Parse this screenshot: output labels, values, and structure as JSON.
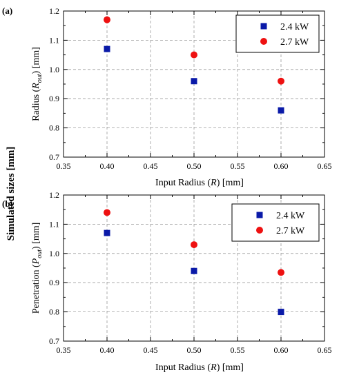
{
  "figure": {
    "super_ylabel": "Simulated sizes [mm]"
  },
  "chart_data": [
    {
      "type": "scatter",
      "panel_label": "(a)",
      "xlabel": {
        "prefix": "Input Radius (",
        "var": "R",
        "sub": "",
        "suffix": ") [mm]"
      },
      "ylabel": {
        "prefix": "Radius (",
        "var": "R",
        "sub": "out",
        "suffix": ") [mm]"
      },
      "xlim": [
        0.35,
        0.65
      ],
      "ylim": [
        0.7,
        1.2
      ],
      "xticks": [
        "0.35",
        "0.40",
        "0.45",
        "0.50",
        "0.55",
        "0.60",
        "0.65"
      ],
      "yticks": [
        "0.7",
        "0.8",
        "0.9",
        "1.0",
        "1.1",
        "1.2"
      ],
      "grid": true,
      "legend_position": "top-right",
      "series": [
        {
          "name": "2.4 kW",
          "marker": "square",
          "color": "#0a1aa8",
          "x": [
            0.4,
            0.5,
            0.6
          ],
          "y": [
            1.07,
            0.96,
            0.86
          ]
        },
        {
          "name": "2.7 kW",
          "marker": "circle",
          "color": "#ee1111",
          "x": [
            0.4,
            0.5,
            0.6
          ],
          "y": [
            1.17,
            1.05,
            0.96
          ]
        }
      ]
    },
    {
      "type": "scatter",
      "panel_label": "(b)",
      "xlabel": {
        "prefix": "Input Radius (",
        "var": "R",
        "sub": "",
        "suffix": ") [mm]"
      },
      "ylabel": {
        "prefix": "Penetration (",
        "var": "P",
        "sub": "out",
        "suffix": ") [mm]"
      },
      "xlim": [
        0.35,
        0.65
      ],
      "ylim": [
        0.7,
        1.2
      ],
      "xticks": [
        "0.35",
        "0.40",
        "0.45",
        "0.50",
        "0.55",
        "0.60",
        "0.65"
      ],
      "yticks": [
        "0.7",
        "0.8",
        "0.9",
        "1.0",
        "1.1",
        "1.2"
      ],
      "grid": true,
      "legend_position": "top-right",
      "series": [
        {
          "name": "2.4 kW",
          "marker": "square",
          "color": "#0a1aa8",
          "x": [
            0.4,
            0.5,
            0.6
          ],
          "y": [
            1.07,
            0.94,
            0.8
          ]
        },
        {
          "name": "2.7 kW",
          "marker": "circle",
          "color": "#ee1111",
          "x": [
            0.4,
            0.5,
            0.6
          ],
          "y": [
            1.14,
            1.03,
            0.935
          ]
        }
      ]
    }
  ]
}
